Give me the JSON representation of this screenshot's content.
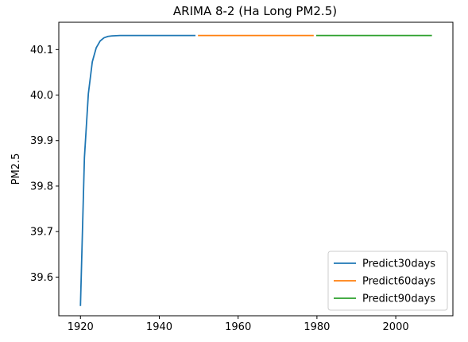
{
  "chart_data": {
    "type": "line",
    "title": "ARIMA 8-2 (Ha Long PM2.5)",
    "xlabel": "",
    "ylabel": "PM2.5",
    "xlim": [
      1914.5,
      2014.5
    ],
    "ylim": [
      39.515,
      40.16
    ],
    "x_ticks": [
      1920,
      1940,
      1960,
      1980,
      2000
    ],
    "y_ticks": [
      39.6,
      39.7,
      39.8,
      39.9,
      40.0,
      40.1
    ],
    "x_tick_labels": [
      "1920",
      "1940",
      "1960",
      "1980",
      "2000"
    ],
    "y_tick_labels": [
      "39.6",
      "39.7",
      "39.8",
      "39.9",
      "40.0",
      "40.1"
    ],
    "grid": false,
    "legend_position": "bottom-right",
    "series": [
      {
        "name": "Predict30days",
        "color": "#1f77b4",
        "x": [
          1920,
          1921,
          1922,
          1923,
          1924,
          1925,
          1926,
          1927,
          1928,
          1929,
          1930,
          1931,
          1932,
          1933,
          1934,
          1935,
          1936,
          1937,
          1938,
          1939,
          1940,
          1941,
          1942,
          1943,
          1944,
          1945,
          1946,
          1947,
          1948,
          1949
        ],
        "y": [
          39.538,
          39.862,
          40.003,
          40.073,
          40.104,
          40.119,
          40.126,
          40.129,
          40.13,
          40.1305,
          40.131,
          40.131,
          40.131,
          40.131,
          40.131,
          40.131,
          40.131,
          40.131,
          40.131,
          40.131,
          40.131,
          40.131,
          40.131,
          40.131,
          40.131,
          40.131,
          40.131,
          40.131,
          40.131,
          40.131
        ]
      },
      {
        "name": "Predict60days",
        "color": "#ff7f0e",
        "x": [
          1950,
          1955,
          1960,
          1965,
          1970,
          1975,
          1979
        ],
        "y": [
          40.131,
          40.131,
          40.131,
          40.131,
          40.131,
          40.131,
          40.131
        ]
      },
      {
        "name": "Predict90days",
        "color": "#2ca02c",
        "x": [
          1980,
          1985,
          1990,
          1995,
          2000,
          2005,
          2009
        ],
        "y": [
          40.131,
          40.131,
          40.131,
          40.131,
          40.131,
          40.131,
          40.131
        ]
      }
    ]
  }
}
